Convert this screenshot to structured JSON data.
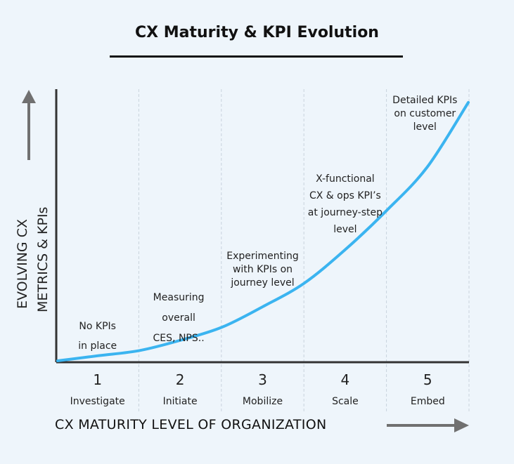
{
  "title": "CX Maturity & KPI Evolution",
  "colors": {
    "background": "#eef5fb",
    "curve": "#3bb4f0",
    "axis": "#333333",
    "arrow": "#707070",
    "grid": "#c9d3dc"
  },
  "chart_data": {
    "type": "line",
    "title": "CX Maturity & KPI Evolution",
    "xlabel": "CX MATURITY LEVEL OF ORGANIZATION",
    "ylabel_lines": [
      "EVOLVING CX",
      "METRICS & KPIs"
    ],
    "grid": "vertical dashed",
    "categories": [
      {
        "number": "1",
        "name": "Investigate"
      },
      {
        "number": "2",
        "name": "Initiate"
      },
      {
        "number": "3",
        "name": "Mobilize"
      },
      {
        "number": "4",
        "name": "Scale"
      },
      {
        "number": "5",
        "name": "Embed"
      }
    ],
    "annotations": [
      {
        "level": 1,
        "lines": [
          "No KPIs",
          "in place"
        ]
      },
      {
        "level": 2,
        "lines": [
          "Measuring",
          "overall",
          "CES, NPS.."
        ]
      },
      {
        "level": 3,
        "lines": [
          "Experimenting",
          "with KPIs on",
          "journey level"
        ]
      },
      {
        "level": 4,
        "lines": [
          "X-functional",
          "CX & ops KPI’s",
          "at journey-step",
          "level"
        ]
      },
      {
        "level": 5,
        "lines": [
          "Detailed KPIs",
          "on customer",
          "level"
        ]
      }
    ],
    "series": [
      {
        "x": [
          0,
          0.5,
          1,
          1.5,
          2,
          2.5,
          3,
          3.5,
          4,
          4.5,
          5
        ],
        "values": [
          0.0,
          0.02,
          0.04,
          0.08,
          0.13,
          0.21,
          0.3,
          0.43,
          0.58,
          0.75,
          1.0
        ]
      }
    ],
    "xlim": [
      0,
      5
    ],
    "ylim": [
      0,
      1
    ]
  }
}
